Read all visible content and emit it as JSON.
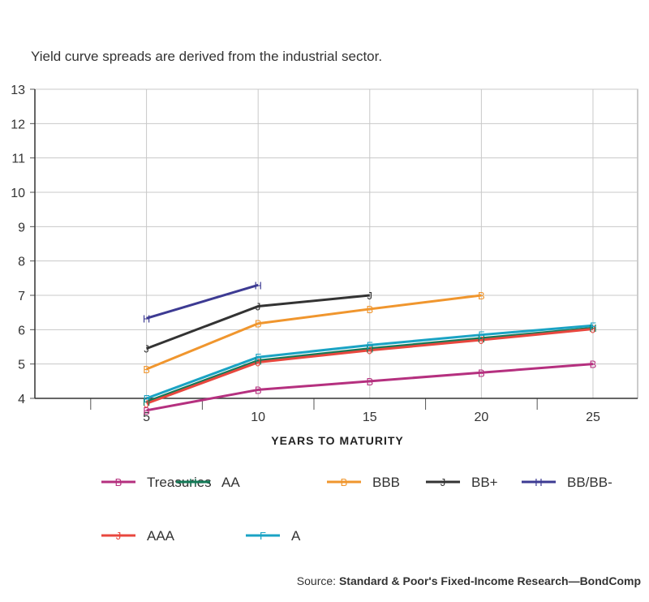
{
  "subtitle": "Yield curve spreads are derived from the industrial sector.",
  "source": {
    "prefix": "Source:",
    "text": "Standard & Poor's Fixed-Income Research—BondComp"
  },
  "chart_data": {
    "type": "line",
    "title": "",
    "subtitle": "Yield curve spreads are derived from the industrial sector.",
    "xlabel": "YEARS TO MATURITY",
    "ylabel": "",
    "xlim": [
      0,
      27
    ],
    "ylim": [
      4,
      13
    ],
    "xticks": [
      5,
      10,
      15,
      20,
      25
    ],
    "yticks": [
      4,
      5,
      6,
      7,
      8,
      9,
      10,
      11,
      12,
      13
    ],
    "grid": true,
    "legend_position": "bottom",
    "series": [
      {
        "name": "Treasuries",
        "marker": "B",
        "color": "#b5307f",
        "x": [
          5,
          10,
          15,
          20,
          25
        ],
        "y": [
          3.65,
          4.25,
          4.5,
          4.75,
          5.0
        ]
      },
      {
        "name": "AA",
        "marker": "H",
        "color": "#137a57",
        "x": [
          5,
          10,
          15,
          20,
          25
        ],
        "y": [
          3.9,
          5.1,
          5.45,
          5.75,
          6.05
        ]
      },
      {
        "name": "BBB",
        "marker": "B",
        "color": "#f0962e",
        "x": [
          5,
          10,
          15,
          20
        ],
        "y": [
          4.85,
          6.18,
          6.6,
          7.0
        ]
      },
      {
        "name": "BB+",
        "marker": "J",
        "color": "#333333",
        "x": [
          5,
          10,
          15
        ],
        "y": [
          5.45,
          6.68,
          7.0
        ]
      },
      {
        "name": "BB/BB-",
        "marker": "H",
        "color": "#3d3b93",
        "x": [
          5,
          10
        ],
        "y": [
          6.33,
          7.3
        ]
      },
      {
        "name": "AAA",
        "marker": "J",
        "color": "#e8473e",
        "x": [
          5,
          10,
          15,
          20,
          25
        ],
        "y": [
          3.85,
          5.05,
          5.4,
          5.7,
          6.02
        ]
      },
      {
        "name": "A",
        "marker": "F",
        "color": "#1aa3c4",
        "x": [
          5,
          10,
          15,
          20,
          25
        ],
        "y": [
          4.0,
          5.2,
          5.55,
          5.85,
          6.12
        ]
      }
    ]
  }
}
